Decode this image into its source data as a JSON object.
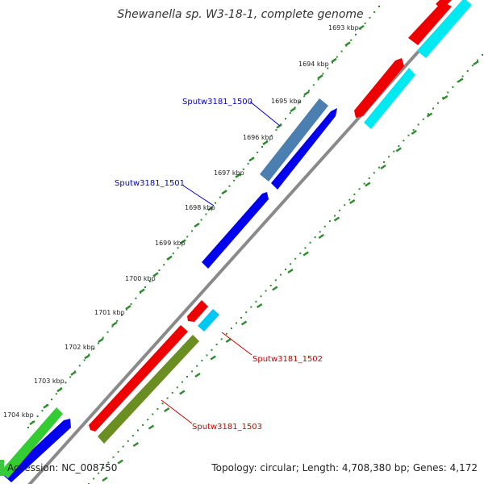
{
  "title": "Shewanella sp. W3-18-1, complete genome",
  "ticks": [
    "1693 kbp",
    "1694 kbp",
    "1695 kbp",
    "1696 kbp",
    "1697 kbp",
    "1698 kbp",
    "1699 kbp",
    "1700 kbp",
    "1701 kbp",
    "1702 kbp",
    "1703 kbp",
    "1704 kbp"
  ],
  "gene_labels": [
    {
      "name": "Sputw3181_1500",
      "color": "#0000cc"
    },
    {
      "name": "Sputw3181_1501",
      "color": "#0000cc"
    },
    {
      "name": "Sputw3181_1502",
      "color": "#cc0000"
    },
    {
      "name": "Sputw3181_1503",
      "color": "#cc0000"
    }
  ],
  "footer": {
    "accession": "Accession: NC_008750",
    "topology": "Topology: circular; Length: 4,708,380 bp; Genes: 4,172"
  },
  "colors": {
    "backbone": "#8a8a8a",
    "forward_cds": "#0000ee",
    "reverse_cds": "#ee0000",
    "highlight_cds": "#4a7fb0",
    "cyan_cds": "#00e8f0",
    "olive_cds": "#6b8e23",
    "green_cds": "#33cc33",
    "dots": "#2e8b2e"
  }
}
